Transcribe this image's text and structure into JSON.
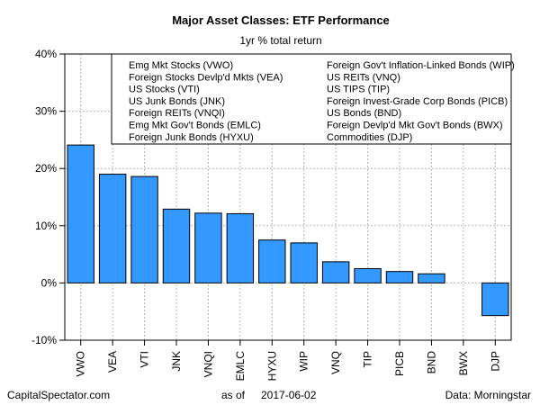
{
  "chart_data": {
    "type": "bar",
    "title": "Major Asset Classes: ETF Performance",
    "subtitle": "1yr % total return",
    "categories": [
      "VWO",
      "VEA",
      "VTI",
      "JNK",
      "VNQI",
      "EMLC",
      "HYXU",
      "WIP",
      "VNQ",
      "TIP",
      "PICB",
      "BND",
      "BWX",
      "DJP"
    ],
    "values": [
      24.1,
      19.0,
      18.6,
      12.9,
      12.2,
      12.1,
      7.5,
      7.0,
      3.7,
      2.5,
      2.0,
      1.6,
      0.0,
      -5.7
    ],
    "ylim": [
      -10,
      40
    ],
    "yticks": [
      -10,
      0,
      10,
      20,
      30,
      40
    ],
    "ytick_labels": [
      "-10%",
      "0%",
      "10%",
      "20%",
      "30%",
      "40%"
    ],
    "grid": true,
    "bar_color": "#3399ff",
    "legend_position": "top-right",
    "legend_left": [
      "Emg Mkt Stocks (VWO)",
      "Foreign Stocks Devlp'd Mkts (VEA)",
      "US Stocks (VTI)",
      "US Junk Bonds (JNK)",
      "Foreign REITs (VNQI)",
      "Emg Mkt Gov't Bonds (EMLC)",
      "Foreign Junk Bonds (HYXU)"
    ],
    "legend_right": [
      "Foreign Gov't Inflation-Linked Bonds (WIP)",
      "US REITs (VNQ)",
      "US TIPS (TIP)",
      "Foreign Invest-Grade Corp Bonds (PICB)",
      "US Bonds (BND)",
      "Foreign Devlp'd Mkt Gov't Bonds (BWX)",
      "Commodities (DJP)"
    ]
  },
  "footer": {
    "source_site": "CapitalSpectator.com",
    "as_of_label": "as of",
    "date": "2017-06-02",
    "data_credit": "Data: Morningstar"
  }
}
